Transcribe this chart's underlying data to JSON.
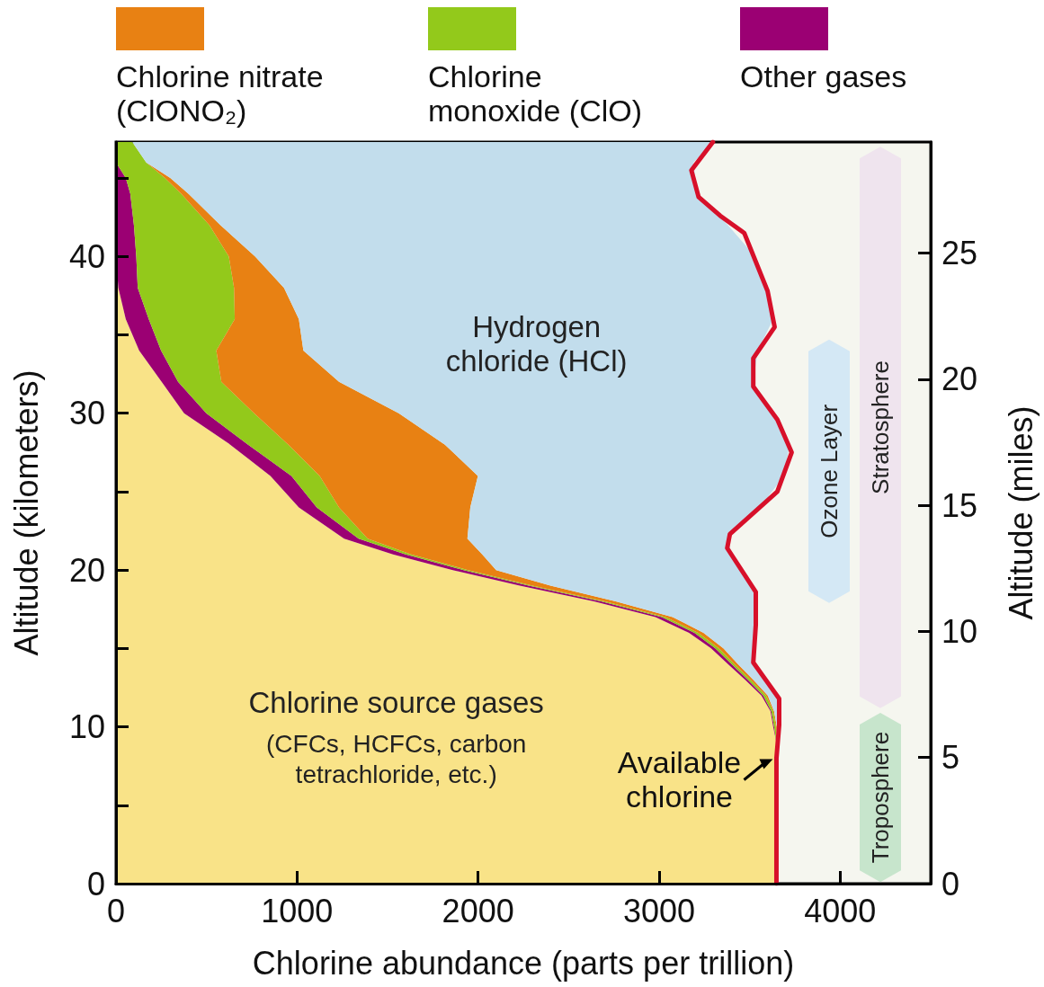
{
  "chart_data": {
    "type": "area",
    "orientation": "horizontal",
    "stacked": true,
    "xlabel": "Chlorine abundance (parts per trillion)",
    "ylabel": "Altitude (kilometers)",
    "y2label": "Altitude (miles)",
    "x": [
      0,
      5,
      9,
      10,
      11,
      12,
      13,
      14,
      15,
      16,
      17,
      18,
      19,
      20,
      21,
      22,
      24,
      26,
      28,
      30,
      32,
      34,
      36,
      38,
      40,
      42,
      44,
      45,
      46,
      47.3
    ],
    "series": [
      {
        "name": "Chlorine source gases",
        "color": "#f9e388",
        "values": [
          3648,
          3648,
          3648,
          3630,
          3615,
          3565,
          3475,
          3380,
          3287,
          3165,
          2980,
          2640,
          2230,
          1860,
          1530,
          1260,
          1010,
          853,
          631,
          376,
          252,
          128,
          54,
          13,
          0,
          null,
          null,
          null,
          null,
          null
        ]
      },
      {
        "name": "Other gases",
        "color": "#9b0073",
        "values": [
          null,
          null,
          0,
          5,
          5,
          10,
          15,
          20,
          23,
          30,
          35,
          40,
          50,
          60,
          70,
          80,
          99,
          116,
          99,
          123,
          91,
          121,
          127,
          107,
          112,
          99,
          79,
          54,
          0,
          null
        ]
      },
      {
        "name": "Chlorine monoxide (ClO)",
        "color": "#93c91b",
        "values": [
          null,
          null,
          0,
          10,
          10,
          15,
          15,
          15,
          20,
          20,
          20,
          20,
          20,
          25,
          30,
          50,
          123,
          156,
          222,
          264,
          239,
          305,
          475,
          532,
          511,
          417,
          281,
          216,
          167,
          90
        ]
      },
      {
        "name": "Chlorine nitrate (ClONO₂)",
        "color": "#e88113",
        "values": [
          null,
          null,
          0,
          5,
          5,
          10,
          15,
          20,
          25,
          30,
          40,
          60,
          100,
          155,
          393,
          551,
          725,
          874,
          865,
          799,
          650,
          481,
          354,
          276,
          145,
          61,
          40,
          30,
          0,
          null
        ]
      },
      {
        "name": "Hydrogen chloride (HCl)",
        "color": "#c2ddec",
        "values": [
          null,
          null,
          0,
          13,
          28,
          63,
          68,
          90,
          175,
          289,
          459,
          774,
          1111,
          1355,
          1377,
          1439,
          1599,
          1691,
          1903,
          2058,
          2288,
          2510,
          2620,
          2667,
          2762,
          2803,
          2810,
          2900,
          3023,
          3207
        ]
      },
      {
        "type": "line",
        "name": "Available chlorine",
        "color": "#d7102a",
        "x": [
          0,
          8.0,
          10.1,
          11.8,
          14.1,
          16.5,
          18.6,
          21.4,
          22.3,
          25.0,
          27.5,
          29.6,
          31.7,
          33.5,
          35.5,
          37.8,
          41.5,
          42.6,
          43.8,
          45.5,
          47.3
        ],
        "values": [
          3648,
          3648,
          3663,
          3663,
          3520,
          3534,
          3534,
          3376,
          3391,
          3653,
          3732,
          3653,
          3520,
          3520,
          3638,
          3599,
          3470,
          3337,
          3218,
          3178,
          3297
        ]
      }
    ],
    "annotations": [
      "(CFCs, HCFCs, carbon tetrachloride, etc.)"
    ],
    "bands": [
      {
        "axis": "y",
        "from": 11.2,
        "to": 47.0,
        "label": "Stratosphere",
        "color": "#efe4ee"
      },
      {
        "axis": "y",
        "from": 0.1,
        "to": 10.9,
        "label": "Troposphere",
        "color": "#c7e5cc"
      },
      {
        "axis": "y",
        "from": 17.9,
        "to": 34.7,
        "label": "Ozone Layer",
        "color": "#d4e8f5"
      }
    ],
    "xlim": [
      0,
      4500
    ],
    "xticks": [
      0,
      1000,
      2000,
      3000,
      4000
    ],
    "ylim": [
      0,
      47.3
    ],
    "yticks": [
      0,
      {
        "value": 5,
        "label": null
      },
      10,
      {
        "value": 15,
        "label": null
      },
      20,
      {
        "value": 25,
        "label": null
      },
      30,
      {
        "value": 35,
        "label": null
      },
      40,
      {
        "value": 45,
        "label": null
      }
    ],
    "y2lim": [
      0,
      29.4
    ],
    "y2ticks": [
      0,
      5,
      10,
      15,
      20,
      25
    ],
    "legend": "top"
  }
}
